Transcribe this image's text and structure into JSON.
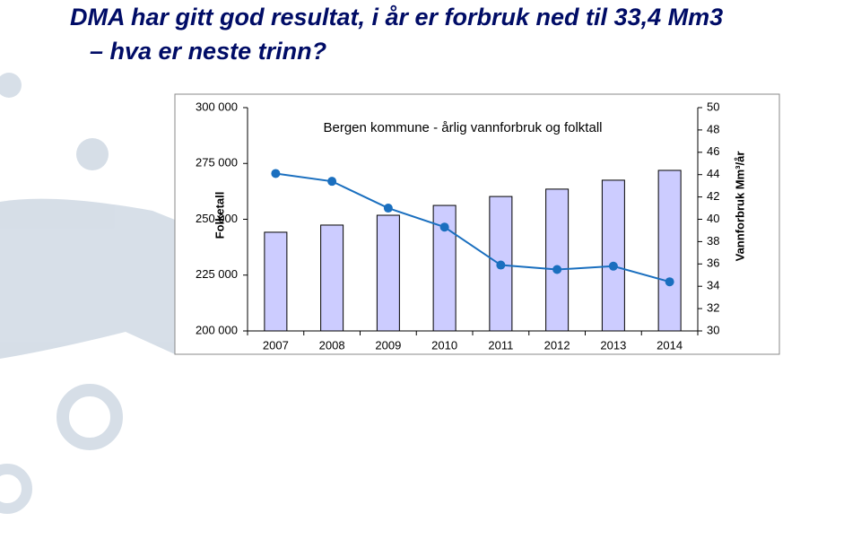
{
  "chart_data": {
    "type": "bar",
    "heading": [
      "DMA har gitt god resultat, i år er forbruk ned til 33,4 Mm3",
      "– hva er neste trinn?"
    ],
    "title": "Bergen kommune - årlig vannforbruk og folktall",
    "ylabel": "Folketall",
    "y2label": "Vannforbruk Mm³/år",
    "categories": [
      "2007",
      "2008",
      "2009",
      "2010",
      "2011",
      "2012",
      "2013",
      "2014"
    ],
    "series": [
      {
        "type": "bar",
        "color": "#ccccff",
        "values": [
          244200,
          247400,
          251800,
          256200,
          260200,
          263500,
          267500,
          271900
        ]
      },
      {
        "type": "line",
        "axis": "y2",
        "color": "#1a6fbf",
        "values": [
          44.1,
          43.4,
          41.0,
          39.3,
          35.9,
          35.5,
          35.8,
          34.4
        ]
      }
    ],
    "ylim": [
      200000,
      300000
    ],
    "yticks": [
      {
        "value": 200000,
        "label": "200 000"
      },
      {
        "value": 225000,
        "label": "225 000"
      },
      {
        "value": 250000,
        "label": "250 000"
      },
      {
        "value": 275000,
        "label": "275 000"
      },
      {
        "value": 300000,
        "label": "300 000"
      }
    ],
    "y2lim": [
      30,
      50
    ],
    "y2ticks": [
      30,
      32,
      34,
      36,
      38,
      40,
      42,
      44,
      46,
      48,
      50
    ],
    "grid": false
  }
}
